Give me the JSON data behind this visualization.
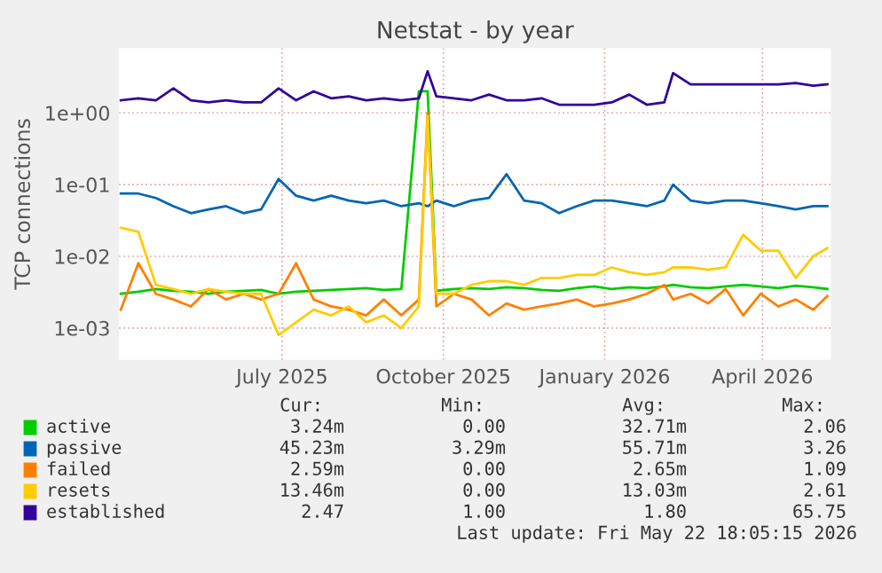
{
  "chart_data": {
    "type": "line",
    "title": "Netstat - by year",
    "ylabel": "TCP connections",
    "x": [
      "2025-03-31",
      "2025-04-10",
      "2025-04-20",
      "2025-04-30",
      "2025-05-10",
      "2025-05-20",
      "2025-05-30",
      "2025-06-09",
      "2025-06-19",
      "2025-06-29",
      "2025-07-09",
      "2025-07-19",
      "2025-07-29",
      "2025-08-08",
      "2025-08-18",
      "2025-08-28",
      "2025-09-07",
      "2025-09-17",
      "2025-09-22",
      "2025-09-27",
      "2025-10-07",
      "2025-10-17",
      "2025-10-27",
      "2025-11-06",
      "2025-11-16",
      "2025-11-26",
      "2025-12-06",
      "2025-12-16",
      "2025-12-26",
      "2026-01-05",
      "2026-01-15",
      "2026-01-25",
      "2026-02-04",
      "2026-02-09",
      "2026-02-19",
      "2026-03-01",
      "2026-03-11",
      "2026-03-21",
      "2026-03-31",
      "2026-04-10",
      "2026-04-20",
      "2026-04-30",
      "2026-05-08"
    ],
    "series": [
      {
        "name": "active",
        "color": "#00cc00",
        "values": [
          0.003,
          0.0032,
          0.0035,
          0.0033,
          0.0032,
          0.003,
          0.0032,
          0.0033,
          0.0034,
          0.003,
          0.0032,
          0.0033,
          0.0034,
          0.0035,
          0.0036,
          0.0034,
          0.0035,
          2.0,
          2.0,
          0.0033,
          0.0035,
          0.0036,
          0.0035,
          0.0037,
          0.0036,
          0.0034,
          0.0033,
          0.0036,
          0.0038,
          0.0035,
          0.0037,
          0.0036,
          0.0038,
          0.004,
          0.0037,
          0.0036,
          0.0038,
          0.004,
          0.0038,
          0.0036,
          0.0039,
          0.0037,
          0.0035
        ]
      },
      {
        "name": "passive",
        "color": "#0066b3",
        "values": [
          0.075,
          0.075,
          0.065,
          0.05,
          0.04,
          0.045,
          0.05,
          0.04,
          0.045,
          0.12,
          0.07,
          0.06,
          0.07,
          0.06,
          0.055,
          0.06,
          0.05,
          0.055,
          0.05,
          0.06,
          0.05,
          0.06,
          0.065,
          0.14,
          0.06,
          0.055,
          0.04,
          0.05,
          0.06,
          0.06,
          0.055,
          0.05,
          0.06,
          0.1,
          0.06,
          0.055,
          0.06,
          0.06,
          0.055,
          0.05,
          0.045,
          0.05,
          0.05
        ]
      },
      {
        "name": "failed",
        "color": "#ff8000",
        "values": [
          0.0018,
          0.008,
          0.003,
          0.0025,
          0.002,
          0.0035,
          0.0025,
          0.003,
          0.0025,
          0.003,
          0.008,
          0.0025,
          0.002,
          0.0018,
          0.0015,
          0.0025,
          0.0015,
          0.0025,
          1.0,
          0.002,
          0.003,
          0.0025,
          0.0015,
          0.0022,
          0.0018,
          0.002,
          0.0022,
          0.0025,
          0.002,
          0.0022,
          0.0025,
          0.003,
          0.004,
          0.0025,
          0.003,
          0.0022,
          0.0035,
          0.0015,
          0.003,
          0.002,
          0.0025,
          0.0018,
          0.0028
        ]
      },
      {
        "name": "resets",
        "color": "#ffcc00",
        "values": [
          0.025,
          0.022,
          0.004,
          0.0035,
          0.003,
          0.0035,
          0.0032,
          0.003,
          0.003,
          0.0008,
          0.0012,
          0.0018,
          0.0015,
          0.002,
          0.0012,
          0.0015,
          0.001,
          0.002,
          0.9,
          0.003,
          0.003,
          0.004,
          0.0045,
          0.0045,
          0.004,
          0.005,
          0.005,
          0.0055,
          0.0055,
          0.007,
          0.006,
          0.0055,
          0.006,
          0.007,
          0.007,
          0.0065,
          0.007,
          0.02,
          0.012,
          0.012,
          0.005,
          0.01,
          0.013
        ]
      },
      {
        "name": "established",
        "color": "#330099",
        "values": [
          1.5,
          1.6,
          1.5,
          2.2,
          1.5,
          1.4,
          1.5,
          1.4,
          1.4,
          2.2,
          1.5,
          2.0,
          1.6,
          1.7,
          1.5,
          1.6,
          1.5,
          1.6,
          3.8,
          1.7,
          1.6,
          1.5,
          1.8,
          1.5,
          1.5,
          1.6,
          1.3,
          1.3,
          1.3,
          1.4,
          1.8,
          1.3,
          1.4,
          3.6,
          2.5,
          2.5,
          2.5,
          2.5,
          2.5,
          2.5,
          2.6,
          2.4,
          2.5
        ]
      }
    ],
    "log": "y",
    "ylim": [
      0.00036,
      8
    ],
    "yticks": [
      {
        "value": 0.001,
        "label": "1e-03"
      },
      {
        "value": 0.01,
        "label": "1e-02"
      },
      {
        "value": 0.1,
        "label": "1e-01"
      },
      {
        "value": 1,
        "label": "1e+00"
      }
    ],
    "xlim": [
      "2025-03-30",
      "2026-05-10"
    ],
    "xticks": [
      {
        "value": "2025-07-01",
        "label": "July 2025"
      },
      {
        "value": "2025-10-01",
        "label": "October 2025"
      },
      {
        "value": "2026-01-01",
        "label": "January 2026"
      },
      {
        "value": "2026-04-01",
        "label": "April 2026"
      }
    ],
    "grid": true,
    "legend": "bottom",
    "annotations": [
      "Cur:",
      "Min:",
      "Avg:",
      "Max:",
      "3.24m",
      "0.00",
      "32.71m",
      "2.06",
      "45.23m",
      "3.29m",
      "55.71m",
      "3.26",
      "2.59m",
      "0.00",
      "2.65m",
      "1.09",
      "13.46m",
      "0.00",
      "13.03m",
      "2.61",
      "2.47",
      "1.00",
      "1.80",
      "65.75",
      "Last update: Fri May 22 18:05:15 2026"
    ]
  }
}
